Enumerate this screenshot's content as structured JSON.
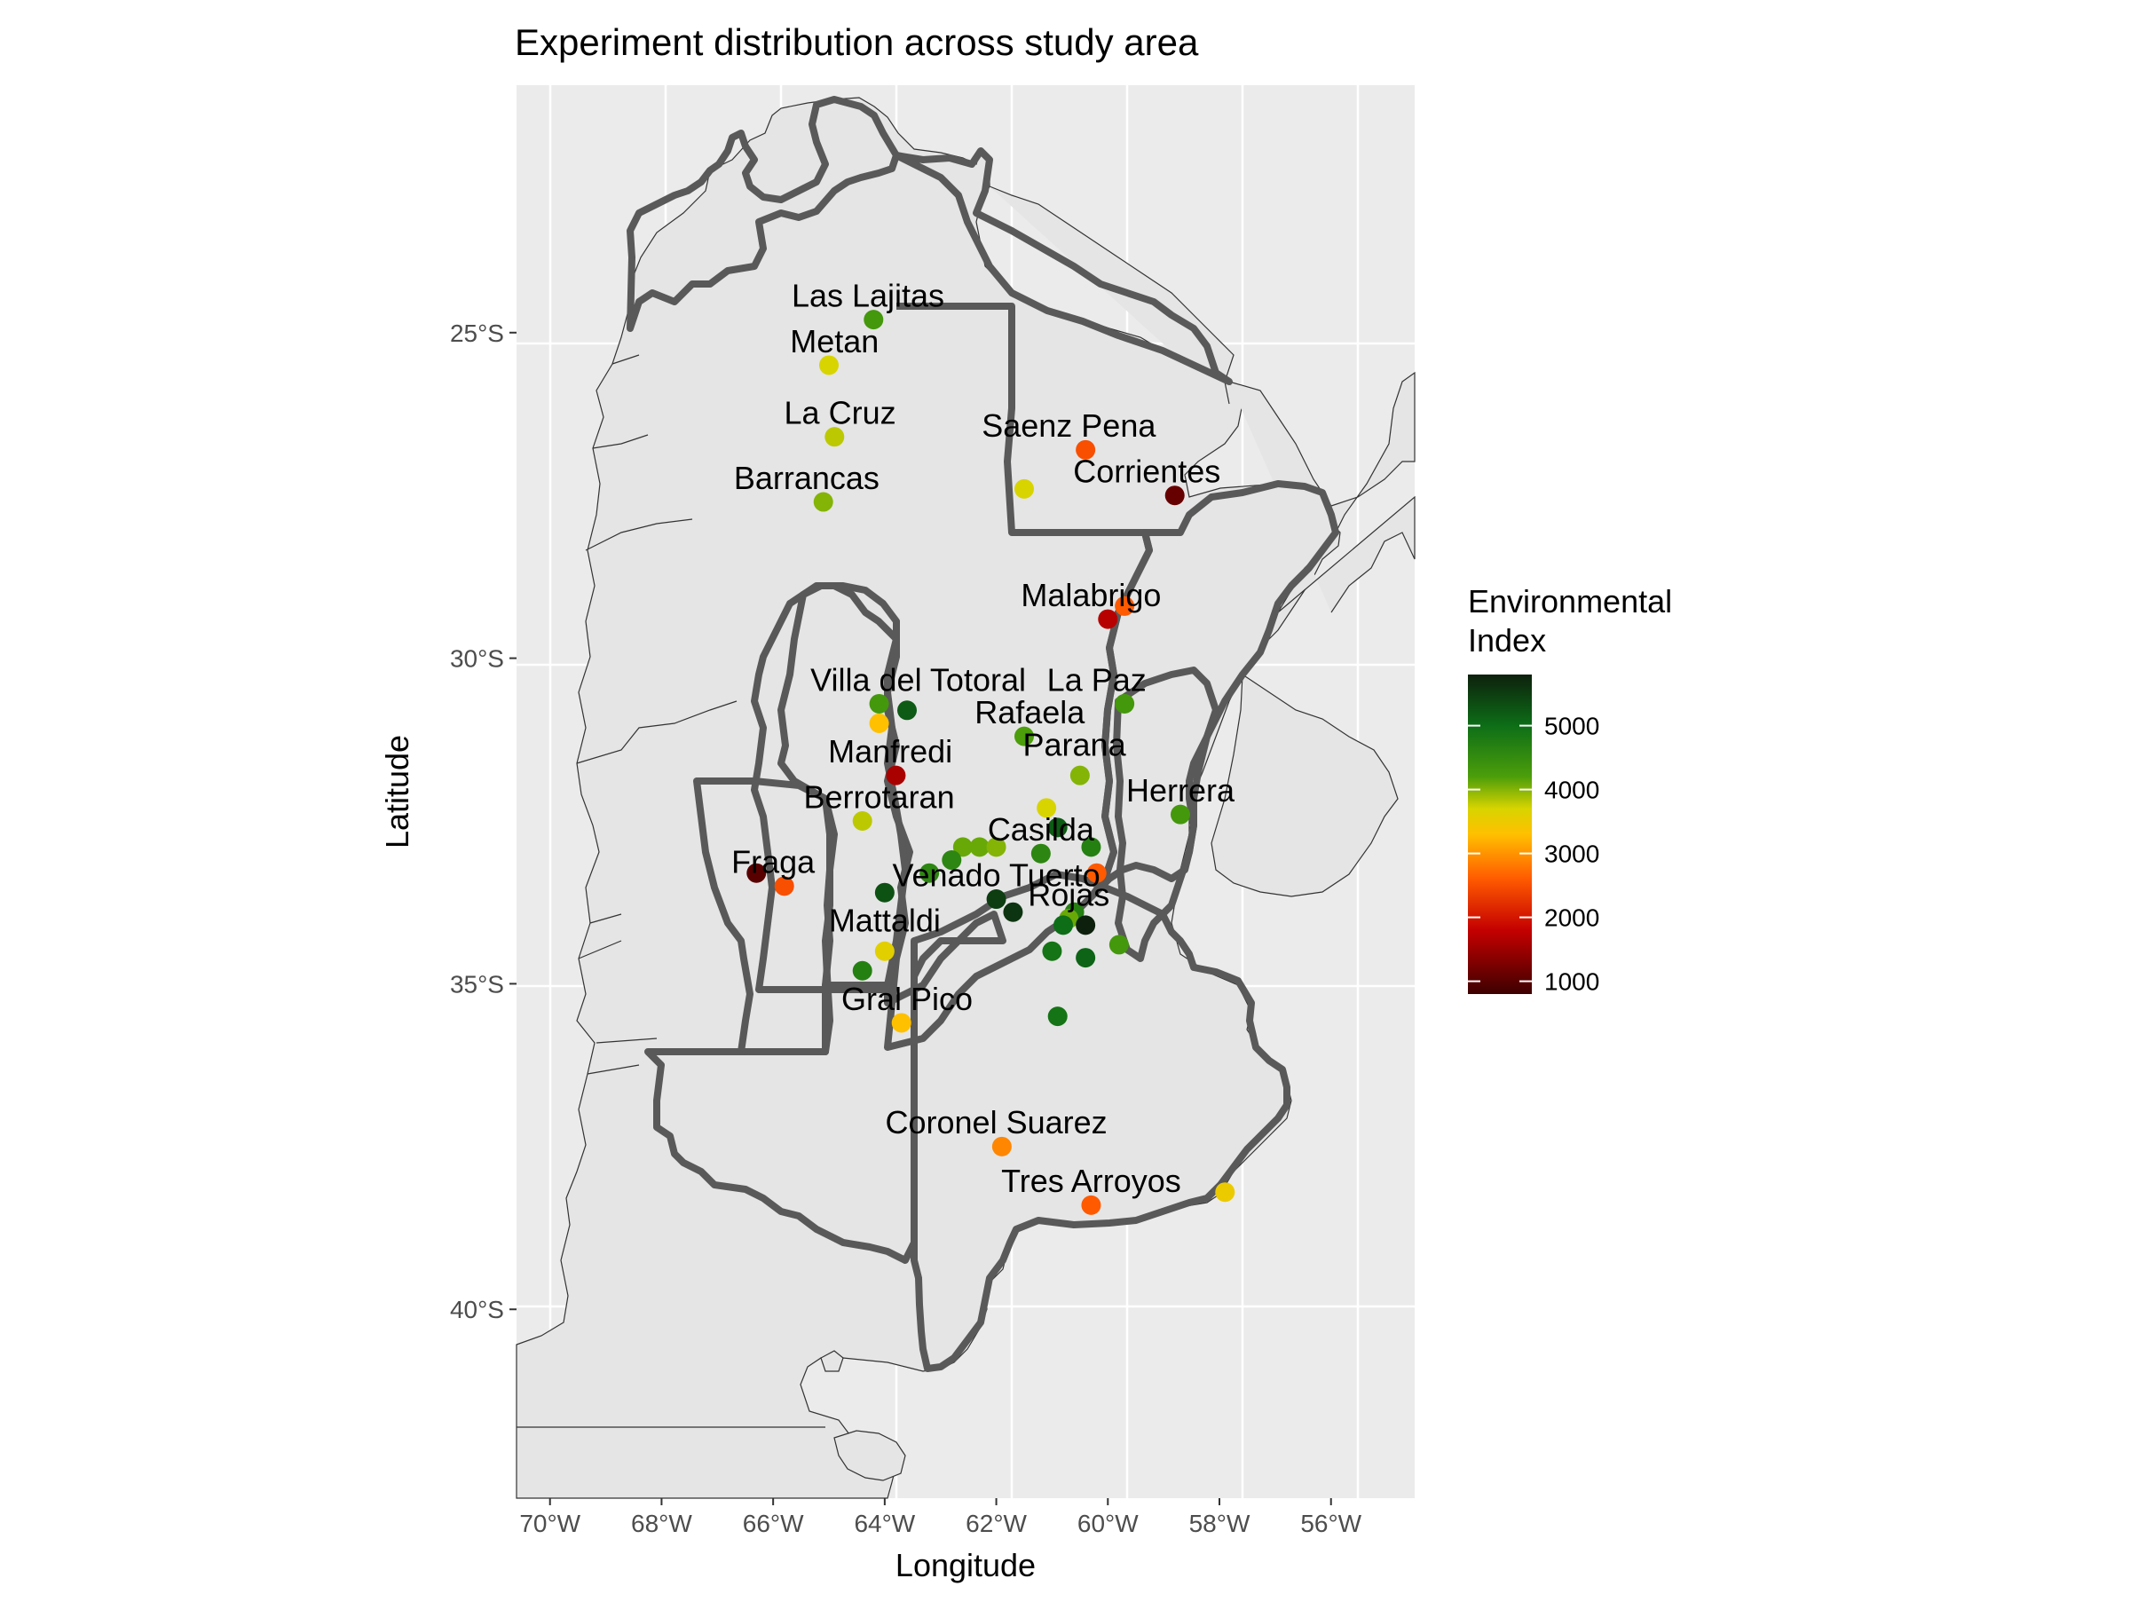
{
  "chart_data": {
    "type": "scatter",
    "title": "Experiment distribution across study area",
    "xlabel": "Longitude",
    "ylabel": "Latitude",
    "xlim": [
      -70.6,
      -54.5
    ],
    "ylim": [
      -42.9,
      -21.2
    ],
    "x_ticks": [
      -70,
      -68,
      -66,
      -64,
      -62,
      -60,
      -58,
      -56
    ],
    "x_tick_labels": [
      "70°W",
      "68°W",
      "66°W",
      "64°W",
      "62°W",
      "60°W",
      "58°W",
      "56°W"
    ],
    "y_ticks": [
      -25,
      -30,
      -35,
      -40
    ],
    "y_tick_labels": [
      "25°S",
      "30°S",
      "35°S",
      "40°S"
    ],
    "grid": true,
    "legend": {
      "title_lines": [
        "Environmental",
        "Index"
      ],
      "placement": "right",
      "range": [
        800,
        5800
      ],
      "ticks": [
        1000,
        2000,
        3000,
        4000,
        5000
      ],
      "tick_labels": [
        "1000",
        "2000",
        "3000",
        "4000",
        "5000"
      ],
      "colors": [
        {
          "value": 800,
          "color": "#3d0000"
        },
        {
          "value": 1800,
          "color": "#c40000"
        },
        {
          "value": 2600,
          "color": "#ff5a00"
        },
        {
          "value": 3300,
          "color": "#ffc000"
        },
        {
          "value": 3700,
          "color": "#d8d400"
        },
        {
          "value": 4200,
          "color": "#4c9e0a"
        },
        {
          "value": 5000,
          "color": "#0d6e17"
        },
        {
          "value": 5800,
          "color": "#0d200d"
        }
      ]
    },
    "points": [
      {
        "lon": -64.2,
        "lat": -24.8,
        "value": 4300
      },
      {
        "lon": -65.0,
        "lat": -25.5,
        "value": 3700
      },
      {
        "lon": -64.9,
        "lat": -26.6,
        "value": 3800
      },
      {
        "lon": -65.1,
        "lat": -27.6,
        "value": 4000
      },
      {
        "lon": -60.4,
        "lat": -26.8,
        "value": 2500
      },
      {
        "lon": -61.5,
        "lat": -27.4,
        "value": 3700
      },
      {
        "lon": -58.8,
        "lat": -27.5,
        "value": 1100
      },
      {
        "lon": -60.0,
        "lat": -29.4,
        "value": 1700
      },
      {
        "lon": -59.7,
        "lat": -29.2,
        "value": 2600
      },
      {
        "lon": -64.1,
        "lat": -30.7,
        "value": 4300
      },
      {
        "lon": -63.6,
        "lat": -30.8,
        "value": 5200
      },
      {
        "lon": -64.1,
        "lat": -31.0,
        "value": 3300
      },
      {
        "lon": -61.5,
        "lat": -31.2,
        "value": 4200
      },
      {
        "lon": -59.7,
        "lat": -30.7,
        "value": 4300
      },
      {
        "lon": -60.5,
        "lat": -31.8,
        "value": 4000
      },
      {
        "lon": -63.8,
        "lat": -31.8,
        "value": 1600
      },
      {
        "lon": -61.1,
        "lat": -32.3,
        "value": 3700
      },
      {
        "lon": -64.4,
        "lat": -32.5,
        "value": 3800
      },
      {
        "lon": -58.7,
        "lat": -32.4,
        "value": 4300
      },
      {
        "lon": -60.9,
        "lat": -32.6,
        "value": 5200
      },
      {
        "lon": -62.6,
        "lat": -32.9,
        "value": 4100
      },
      {
        "lon": -62.3,
        "lat": -32.9,
        "value": 4100
      },
      {
        "lon": -62.0,
        "lat": -32.9,
        "value": 4000
      },
      {
        "lon": -61.2,
        "lat": -33.0,
        "value": 4600
      },
      {
        "lon": -60.3,
        "lat": -32.9,
        "value": 4700
      },
      {
        "lon": -62.8,
        "lat": -33.1,
        "value": 4600
      },
      {
        "lon": -63.2,
        "lat": -33.3,
        "value": 4600
      },
      {
        "lon": -60.2,
        "lat": -33.3,
        "value": 2600
      },
      {
        "lon": -66.3,
        "lat": -33.3,
        "value": 1000
      },
      {
        "lon": -65.8,
        "lat": -33.5,
        "value": 2500
      },
      {
        "lon": -64.0,
        "lat": -33.6,
        "value": 5300
      },
      {
        "lon": -62.0,
        "lat": -33.7,
        "value": 5500
      },
      {
        "lon": -61.7,
        "lat": -33.9,
        "value": 5600
      },
      {
        "lon": -60.6,
        "lat": -33.9,
        "value": 4700
      },
      {
        "lon": -60.7,
        "lat": -34.0,
        "value": 4100
      },
      {
        "lon": -60.4,
        "lat": -34.1,
        "value": 5800
      },
      {
        "lon": -60.8,
        "lat": -34.1,
        "value": 5000
      },
      {
        "lon": -59.8,
        "lat": -34.4,
        "value": 4300
      },
      {
        "lon": -61.0,
        "lat": -34.5,
        "value": 4900
      },
      {
        "lon": -60.4,
        "lat": -34.6,
        "value": 5100
      },
      {
        "lon": -64.0,
        "lat": -34.5,
        "value": 3600
      },
      {
        "lon": -64.4,
        "lat": -34.8,
        "value": 4700
      },
      {
        "lon": -60.9,
        "lat": -35.5,
        "value": 4900
      },
      {
        "lon": -63.7,
        "lat": -35.6,
        "value": 3300
      },
      {
        "lon": -61.9,
        "lat": -37.5,
        "value": 2900
      },
      {
        "lon": -60.3,
        "lat": -38.4,
        "value": 2600
      },
      {
        "lon": -57.9,
        "lat": -38.2,
        "value": 3500
      }
    ],
    "labels": [
      {
        "text": "Las Lajitas",
        "lon": -64.3,
        "lat": -24.6
      },
      {
        "text": "Metan",
        "lon": -64.9,
        "lat": -25.3
      },
      {
        "text": "La Cruz",
        "lon": -64.8,
        "lat": -26.4
      },
      {
        "text": "Barrancas",
        "lon": -65.4,
        "lat": -27.4
      },
      {
        "text": "Saenz Pena",
        "lon": -60.7,
        "lat": -26.6
      },
      {
        "text": "Corrientes",
        "lon": -59.3,
        "lat": -27.3
      },
      {
        "text": "Malabrigo",
        "lon": -60.3,
        "lat": -29.2
      },
      {
        "text": "Villa del Totoral",
        "lon": -63.4,
        "lat": -30.5
      },
      {
        "text": "La Paz",
        "lon": -60.2,
        "lat": -30.5
      },
      {
        "text": "Rafaela",
        "lon": -61.4,
        "lat": -31.0
      },
      {
        "text": "Parana",
        "lon": -60.6,
        "lat": -31.5
      },
      {
        "text": "Manfredi",
        "lon": -63.9,
        "lat": -31.6
      },
      {
        "text": "Berrotaran",
        "lon": -64.1,
        "lat": -32.3
      },
      {
        "text": "Herrera",
        "lon": -58.7,
        "lat": -32.2
      },
      {
        "text": "Casilda",
        "lon": -61.2,
        "lat": -32.8
      },
      {
        "text": "Fraga",
        "lon": -66.0,
        "lat": -33.3
      },
      {
        "text": "Venado Tuerto",
        "lon": -62.0,
        "lat": -33.5
      },
      {
        "text": "Rojas",
        "lon": -60.7,
        "lat": -33.8
      },
      {
        "text": "Mattaldi",
        "lon": -64.0,
        "lat": -34.2
      },
      {
        "text": "Gral Pico",
        "lon": -63.6,
        "lat": -35.4
      },
      {
        "text": "Coronel Suarez",
        "lon": -62.0,
        "lat": -37.3
      },
      {
        "text": "Tres Arroyos",
        "lon": -60.3,
        "lat": -38.2
      }
    ]
  }
}
